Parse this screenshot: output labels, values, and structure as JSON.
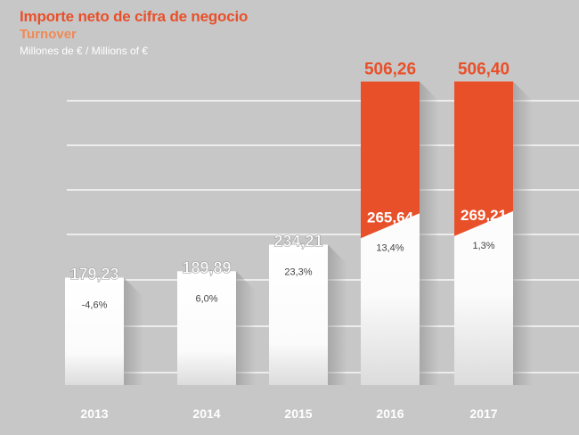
{
  "header": {
    "title": "Importe neto de cifra de negocio",
    "subtitle": "Turnover",
    "unit": "Millones de € / Millions of €"
  },
  "colors": {
    "accent": "#e8502a",
    "accent_light": "#f08a55",
    "background": "#c8c7c7",
    "bar": "#ffffff",
    "grid": "#ffffff"
  },
  "chart_data": {
    "type": "bar",
    "title": "Importe neto de cifra de negocio",
    "subtitle": "Turnover",
    "ylabel": "Millones de € / Millions of €",
    "categories": [
      "2013",
      "2014",
      "2015",
      "2016",
      "2017"
    ],
    "series": [
      {
        "name": "",
        "values": [
          179.23,
          189.89,
          234.21,
          265.64,
          269.21
        ]
      },
      {
        "name": "",
        "values": [
          null,
          null,
          null,
          506.26,
          506.4
        ]
      }
    ],
    "value_labels": [
      "179,23",
      "189,89",
      "234,21",
      "265,64",
      "269,21"
    ],
    "total_labels": [
      null,
      null,
      null,
      "506,26",
      "506,40"
    ],
    "growth_labels": [
      "-4,6%",
      "6,0%",
      "23,3%",
      "13,4%",
      "1,3%"
    ],
    "grid": true,
    "legend": "none"
  }
}
